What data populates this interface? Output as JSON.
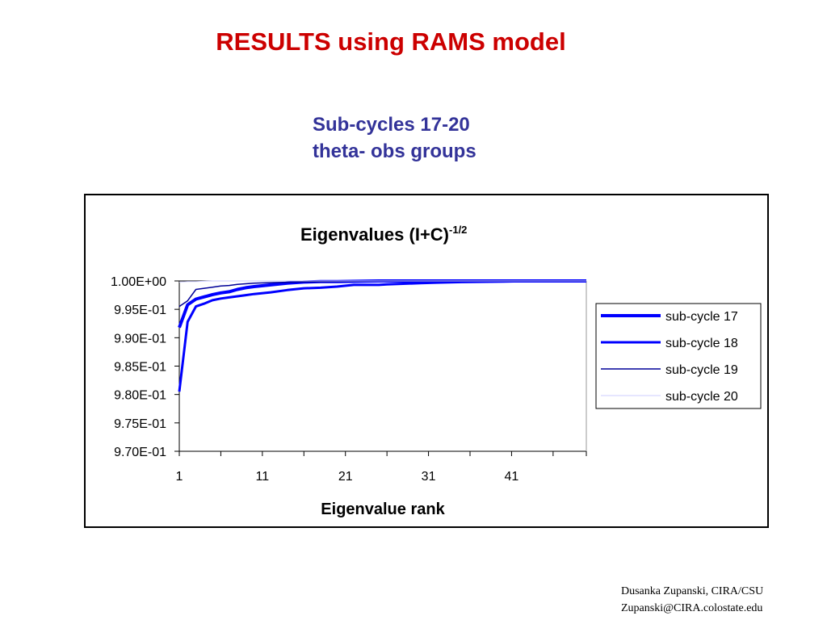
{
  "slide": {
    "title": "RESULTS using RAMS model",
    "subtitle_line1": "Sub-cycles 17-20",
    "subtitle_line2": "theta- obs groups"
  },
  "footer": {
    "line1": "Dusanka Zupanski,  CIRA/CSU",
    "line2": "Zupanski@CIRA.colostate.edu"
  },
  "colors": {
    "title": "#cc0000",
    "subtitle": "#333399",
    "series_blue": "#0000ff",
    "series_navy": "#000099",
    "series_light": "#ccccff"
  },
  "chart_data": {
    "type": "line",
    "title": "Eigenvalues (I+C)",
    "title_superscript": "-1/2",
    "xlabel": "Eigenvalue rank",
    "ylabel": "",
    "x_ticks": [
      1,
      11,
      21,
      31,
      41
    ],
    "xlim": [
      1,
      50
    ],
    "y_ticks": [
      "1.00E+00",
      "9.95E-01",
      "9.90E-01",
      "9.85E-01",
      "9.80E-01",
      "9.75E-01",
      "9.70E-01"
    ],
    "ylim": [
      0.97,
      1.0
    ],
    "grid": "horizontal line at 1.00E+00",
    "legend_position": "right",
    "series": [
      {
        "name": "sub-cycle 17",
        "x": [
          1,
          2,
          3,
          4,
          5,
          6,
          7,
          8,
          9,
          10,
          12,
          14,
          16,
          18,
          20,
          25,
          30,
          35,
          40,
          45,
          50
        ],
        "values": [
          0.9918,
          0.9958,
          0.9968,
          0.9972,
          0.9976,
          0.9979,
          0.9981,
          0.9985,
          0.9988,
          0.999,
          0.9993,
          0.9996,
          0.9998,
          0.9999,
          0.9999,
          1.0,
          1.0,
          1.0,
          1.0,
          1.0,
          1.0
        ],
        "color": "#0000ff"
      },
      {
        "name": "sub-cycle 18",
        "x": [
          1,
          2,
          3,
          4,
          5,
          6,
          7,
          8,
          9,
          10,
          12,
          14,
          16,
          18,
          20,
          22,
          25,
          26,
          30,
          32,
          35,
          40,
          45,
          50
        ],
        "values": [
          0.9805,
          0.9928,
          0.9955,
          0.996,
          0.9966,
          0.9969,
          0.9971,
          0.9973,
          0.9975,
          0.9977,
          0.998,
          0.9984,
          0.9987,
          0.9988,
          0.999,
          0.9993,
          0.9993,
          0.9994,
          0.9996,
          0.9997,
          0.9998,
          0.9999,
          1.0,
          1.0
        ],
        "color": "#0000ff"
      },
      {
        "name": "sub-cycle 19",
        "x": [
          1,
          2,
          3,
          4,
          5,
          6,
          7,
          8,
          9,
          10,
          12,
          15,
          20,
          25,
          30,
          40,
          50
        ],
        "values": [
          0.9955,
          0.9965,
          0.9985,
          0.9987,
          0.9989,
          0.9991,
          0.9992,
          0.9994,
          0.9995,
          0.9996,
          0.9997,
          0.9998,
          0.9999,
          1.0,
          1.0,
          1.0,
          1.0
        ],
        "color": "#000099"
      },
      {
        "name": "sub-cycle 20",
        "x": [
          1,
          2,
          3,
          5,
          8,
          12,
          20,
          30,
          40,
          50
        ],
        "values": [
          0.9998,
          0.9999,
          0.9999,
          1.0,
          1.0,
          1.0,
          1.0,
          1.0,
          1.0,
          1.0
        ],
        "color": "#ccccff"
      }
    ]
  }
}
